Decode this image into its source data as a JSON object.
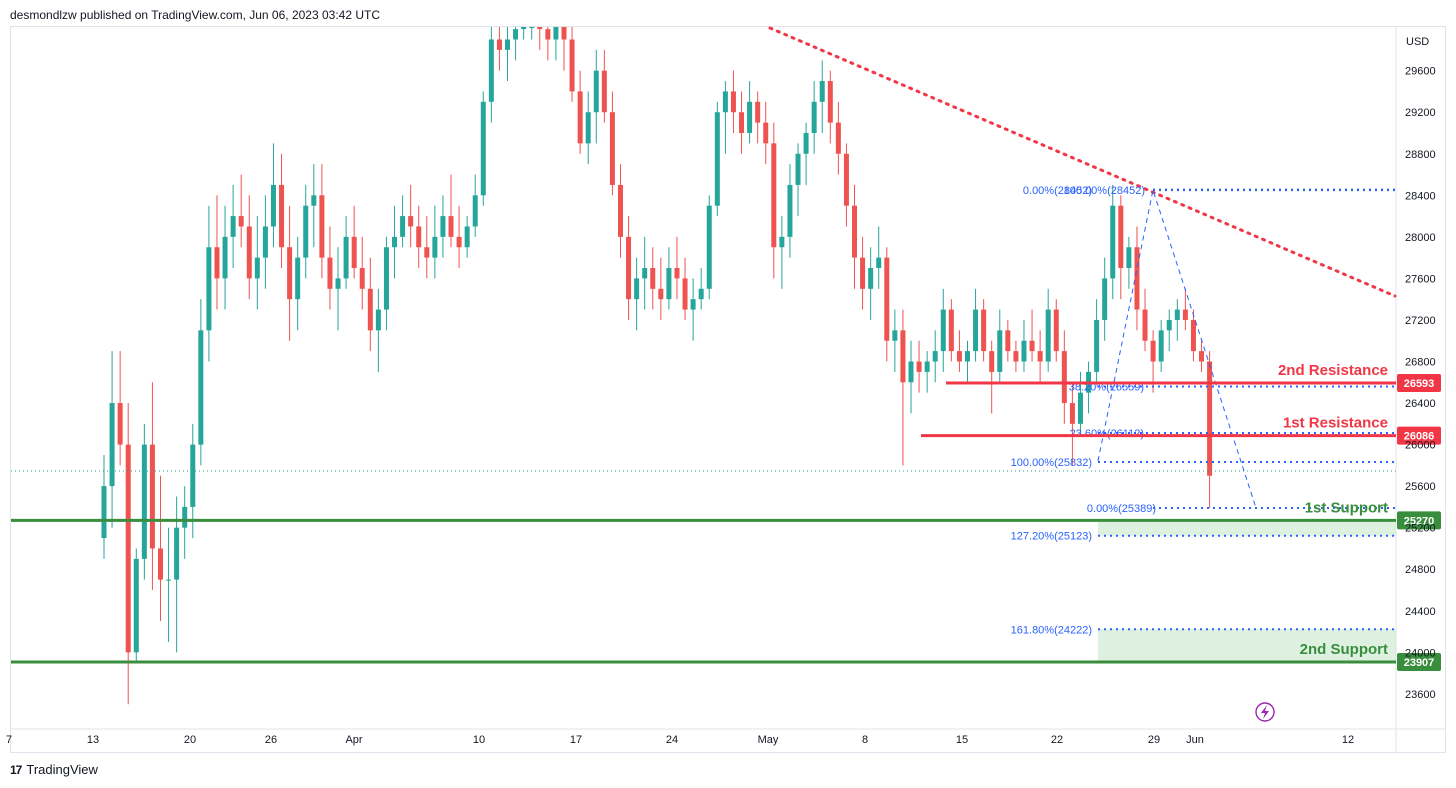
{
  "header": {
    "publisher": "desmondlzw published on TradingView.com, Jun 06, 2023 03:42 UTC"
  },
  "footer": {
    "brand": "TradingView",
    "logo_glyph": "17"
  },
  "colors": {
    "up": "#26a69a",
    "down": "#ef5350",
    "resistance": "#f23645",
    "support": "#388e3c",
    "fib": "#2962ff",
    "trendline": "#f23645",
    "support_zone": "#c8e6c9"
  },
  "chart_data": {
    "type": "candlestick",
    "currency": "USD",
    "ylim": [
      23300,
      29900
    ],
    "y_ticks": [
      23600,
      24000,
      24400,
      24800,
      25200,
      25600,
      26000,
      26400,
      26800,
      27200,
      27600,
      28000,
      28400,
      28800,
      29200,
      29600
    ],
    "x_ticks": [
      "7",
      "13",
      "20",
      "26",
      "Apr",
      "10",
      "17",
      "24",
      "May",
      "8",
      "15",
      "22",
      "29",
      "Jun",
      "12"
    ],
    "levels": [
      {
        "name": "2nd Resistance",
        "price": 26593,
        "price_label": "26593",
        "kind": "resistance"
      },
      {
        "name": "1st Resistance",
        "price": 26086,
        "price_label": "26086",
        "kind": "resistance"
      },
      {
        "name": "1st Support",
        "price": 25270,
        "price_label": "25270",
        "kind": "support"
      },
      {
        "name": "2nd Support",
        "price": 23907,
        "price_label": "23907",
        "kind": "support"
      }
    ],
    "fib_levels": [
      {
        "label": "0.00%(28452)",
        "price": 28452
      },
      {
        "label": "100.00%(28452)",
        "price": 28452
      },
      {
        "label": "38.20%(26559)",
        "price": 26559
      },
      {
        "label": "23.60%(26112)",
        "price": 26112
      },
      {
        "label": "100.00%(25832)",
        "price": 25832
      },
      {
        "label": "0.00%(25389)",
        "price": 25389
      },
      {
        "label": "127.20%(25123)",
        "price": 25123
      },
      {
        "label": "161.80%(24222)",
        "price": 24222
      }
    ],
    "trendline": {
      "start": {
        "date": "Apr 30",
        "price": 30000
      },
      "end": {
        "date": "Jun 13",
        "price": 27400
      }
    },
    "candles": [
      [
        25100,
        25900,
        24900,
        25600
      ],
      [
        25600,
        26900,
        25200,
        26400
      ],
      [
        26400,
        26900,
        25800,
        26000
      ],
      [
        26000,
        26400,
        23500,
        24000
      ],
      [
        24000,
        25000,
        23900,
        24900
      ],
      [
        24900,
        26200,
        24700,
        26000
      ],
      [
        26000,
        26600,
        24600,
        25000
      ],
      [
        25000,
        25700,
        24300,
        24700
      ],
      [
        24700,
        25200,
        24100,
        24700
      ],
      [
        24700,
        25500,
        24000,
        25200
      ],
      [
        25200,
        25600,
        24900,
        25400
      ],
      [
        25400,
        26200,
        25100,
        26000
      ],
      [
        26000,
        27400,
        25800,
        27100
      ],
      [
        27100,
        28300,
        26800,
        27900
      ],
      [
        27900,
        28400,
        27300,
        27600
      ],
      [
        27600,
        28300,
        27300,
        28000
      ],
      [
        28000,
        28500,
        27700,
        28200
      ],
      [
        28200,
        28600,
        27900,
        28100
      ],
      [
        28100,
        28400,
        27400,
        27600
      ],
      [
        27600,
        28200,
        27300,
        27800
      ],
      [
        27800,
        28400,
        27500,
        28100
      ],
      [
        28100,
        28900,
        27900,
        28500
      ],
      [
        28500,
        28800,
        27700,
        27900
      ],
      [
        27900,
        28300,
        27000,
        27400
      ],
      [
        27400,
        28000,
        27100,
        27800
      ],
      [
        27800,
        28500,
        27600,
        28300
      ],
      [
        28300,
        28700,
        27900,
        28400
      ],
      [
        28400,
        28700,
        27600,
        27800
      ],
      [
        27800,
        28100,
        27300,
        27500
      ],
      [
        27500,
        27900,
        27100,
        27600
      ],
      [
        27600,
        28200,
        27500,
        28000
      ],
      [
        28000,
        28300,
        27600,
        27700
      ],
      [
        27700,
        28000,
        27300,
        27500
      ],
      [
        27500,
        27800,
        26900,
        27100
      ],
      [
        27100,
        27500,
        26700,
        27300
      ],
      [
        27300,
        28000,
        27100,
        27900
      ],
      [
        27900,
        28300,
        27600,
        28000
      ],
      [
        28000,
        28400,
        27900,
        28200
      ],
      [
        28200,
        28500,
        27900,
        28100
      ],
      [
        28100,
        28300,
        27700,
        27900
      ],
      [
        27900,
        28200,
        27600,
        27800
      ],
      [
        27800,
        28300,
        27600,
        28000
      ],
      [
        28000,
        28400,
        27800,
        28200
      ],
      [
        28200,
        28600,
        27900,
        28000
      ],
      [
        28000,
        28300,
        27700,
        27900
      ],
      [
        27900,
        28200,
        27800,
        28100
      ],
      [
        28100,
        28600,
        28000,
        28400
      ],
      [
        28400,
        29400,
        28300,
        29300
      ],
      [
        29300,
        30100,
        29100,
        29900
      ],
      [
        29900,
        30200,
        29600,
        29800
      ],
      [
        29800,
        30100,
        29500,
        29900
      ],
      [
        29900,
        30200,
        29700,
        30000
      ],
      [
        30000,
        30300,
        29900,
        30100
      ],
      [
        30100,
        30400,
        29900,
        30200
      ],
      [
        30200,
        30400,
        29800,
        30000
      ],
      [
        30000,
        30200,
        29700,
        29900
      ],
      [
        29900,
        30300,
        29700,
        30100
      ],
      [
        30100,
        30200,
        29600,
        29900
      ],
      [
        29900,
        30100,
        29300,
        29400
      ],
      [
        29400,
        29600,
        28800,
        28900
      ],
      [
        28900,
        29400,
        28700,
        29200
      ],
      [
        29200,
        29800,
        28900,
        29600
      ],
      [
        29600,
        29800,
        29100,
        29200
      ],
      [
        29200,
        29400,
        28400,
        28500
      ],
      [
        28500,
        28700,
        27800,
        28000
      ],
      [
        28000,
        28200,
        27200,
        27400
      ],
      [
        27400,
        27800,
        27100,
        27600
      ],
      [
        27600,
        28000,
        27300,
        27700
      ],
      [
        27700,
        27900,
        27300,
        27500
      ],
      [
        27500,
        27800,
        27200,
        27400
      ],
      [
        27400,
        27900,
        27300,
        27700
      ],
      [
        27700,
        28000,
        27400,
        27600
      ],
      [
        27600,
        27800,
        27200,
        27300
      ],
      [
        27300,
        27600,
        27000,
        27400
      ],
      [
        27400,
        27700,
        27300,
        27500
      ],
      [
        27500,
        28400,
        27400,
        28300
      ],
      [
        28300,
        29300,
        28200,
        29200
      ],
      [
        29200,
        29500,
        28800,
        29400
      ],
      [
        29400,
        29600,
        29000,
        29200
      ],
      [
        29200,
        29400,
        28800,
        29000
      ],
      [
        29000,
        29500,
        28900,
        29300
      ],
      [
        29300,
        29400,
        28900,
        29100
      ],
      [
        29100,
        29300,
        28700,
        28900
      ],
      [
        28900,
        29100,
        27600,
        27900
      ],
      [
        27900,
        28200,
        27500,
        28000
      ],
      [
        28000,
        28700,
        27800,
        28500
      ],
      [
        28500,
        28900,
        28200,
        28800
      ],
      [
        28800,
        29100,
        28500,
        29000
      ],
      [
        29000,
        29500,
        28800,
        29300
      ],
      [
        29300,
        29700,
        29000,
        29500
      ],
      [
        29500,
        29600,
        28900,
        29100
      ],
      [
        29100,
        29300,
        28600,
        28800
      ],
      [
        28800,
        28900,
        28100,
        28300
      ],
      [
        28300,
        28500,
        27500,
        27800
      ],
      [
        27800,
        28000,
        27300,
        27500
      ],
      [
        27500,
        27900,
        27200,
        27700
      ],
      [
        27700,
        28100,
        27500,
        27800
      ],
      [
        27800,
        27900,
        26800,
        27000
      ],
      [
        27000,
        27300,
        26700,
        27100
      ],
      [
        27100,
        27300,
        25800,
        26600
      ],
      [
        26600,
        27000,
        26300,
        26800
      ],
      [
        26800,
        27000,
        26500,
        26700
      ],
      [
        26700,
        26900,
        26500,
        26800
      ],
      [
        26800,
        27100,
        26600,
        26900
      ],
      [
        26900,
        27500,
        26700,
        27300
      ],
      [
        27300,
        27400,
        26800,
        26900
      ],
      [
        26900,
        27100,
        26700,
        26800
      ],
      [
        26800,
        27000,
        26600,
        26900
      ],
      [
        26900,
        27500,
        26800,
        27300
      ],
      [
        27300,
        27400,
        26800,
        26900
      ],
      [
        26900,
        27000,
        26300,
        26700
      ],
      [
        26700,
        27300,
        26600,
        27100
      ],
      [
        27100,
        27200,
        26800,
        26900
      ],
      [
        26900,
        27000,
        26700,
        26800
      ],
      [
        26800,
        27200,
        26700,
        27000
      ],
      [
        27000,
        27300,
        26800,
        26900
      ],
      [
        26900,
        27100,
        26600,
        26800
      ],
      [
        26800,
        27500,
        26700,
        27300
      ],
      [
        27300,
        27400,
        26800,
        26900
      ],
      [
        26900,
        27100,
        26200,
        26400
      ],
      [
        26400,
        26600,
        25800,
        26200
      ],
      [
        26200,
        26700,
        26100,
        26500
      ],
      [
        26500,
        26800,
        26300,
        26700
      ],
      [
        26700,
        27400,
        26600,
        27200
      ],
      [
        27200,
        27800,
        27000,
        27600
      ],
      [
        27600,
        28500,
        27400,
        28300
      ],
      [
        28300,
        28400,
        27400,
        27700
      ],
      [
        27700,
        28000,
        27500,
        27900
      ],
      [
        27900,
        28100,
        27100,
        27300
      ],
      [
        27300,
        27500,
        26900,
        27000
      ],
      [
        27000,
        27100,
        26500,
        26800
      ],
      [
        26800,
        27200,
        26700,
        27100
      ],
      [
        27100,
        27300,
        26900,
        27200
      ],
      [
        27200,
        27400,
        27000,
        27300
      ],
      [
        27300,
        27500,
        27100,
        27200
      ],
      [
        27200,
        27300,
        26800,
        26900
      ],
      [
        26900,
        27000,
        26700,
        26800
      ],
      [
        26800,
        26900,
        25389,
        25700
      ]
    ]
  }
}
